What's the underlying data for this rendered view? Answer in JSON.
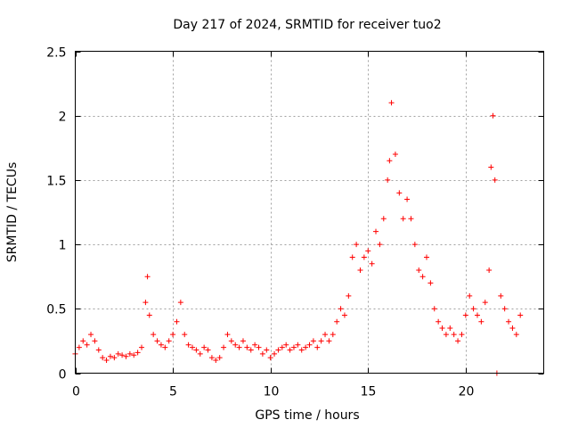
{
  "chart_data": {
    "type": "scatter",
    "title": "Day 217 of 2024, SRMTID for receiver tuo2",
    "xlabel": "GPS time / hours",
    "ylabel": "SRMTID / TECUs",
    "xlim": [
      0,
      24
    ],
    "ylim": [
      0,
      2.5
    ],
    "xticks": [
      0,
      5,
      10,
      15,
      20
    ],
    "xtick_labels": [
      "0",
      "5",
      "10",
      "15",
      "20"
    ],
    "yticks": [
      0,
      0.5,
      1,
      1.5,
      2,
      2.5
    ],
    "ytick_labels": [
      "0",
      "0.5",
      "1",
      "1.5",
      "2",
      "2.5"
    ],
    "grid": true,
    "marker": "+",
    "series": [
      {
        "name": "SRMTID",
        "color": "#ff0000",
        "x": [
          0.0,
          0.2,
          0.4,
          0.6,
          0.8,
          1.0,
          1.2,
          1.4,
          1.6,
          1.8,
          2.0,
          2.2,
          2.4,
          2.6,
          2.8,
          3.0,
          3.2,
          3.4,
          3.6,
          3.7,
          3.8,
          4.0,
          4.2,
          4.4,
          4.6,
          4.8,
          5.0,
          5.2,
          5.4,
          5.6,
          5.8,
          6.0,
          6.2,
          6.4,
          6.6,
          6.8,
          7.0,
          7.2,
          7.4,
          7.6,
          7.8,
          8.0,
          8.2,
          8.4,
          8.6,
          8.8,
          9.0,
          9.2,
          9.4,
          9.6,
          9.8,
          10.0,
          10.2,
          10.4,
          10.6,
          10.8,
          11.0,
          11.2,
          11.4,
          11.6,
          11.8,
          12.0,
          12.2,
          12.4,
          12.6,
          12.8,
          13.0,
          13.2,
          13.4,
          13.6,
          13.8,
          14.0,
          14.2,
          14.4,
          14.6,
          14.8,
          15.0,
          15.2,
          15.4,
          15.6,
          15.8,
          16.0,
          16.1,
          16.2,
          16.4,
          16.6,
          16.8,
          17.0,
          17.2,
          17.4,
          17.6,
          17.8,
          18.0,
          18.2,
          18.4,
          18.6,
          18.8,
          19.0,
          19.2,
          19.4,
          19.6,
          19.8,
          20.0,
          20.2,
          20.4,
          20.6,
          20.8,
          21.0,
          21.2,
          21.3,
          21.4,
          21.5,
          21.6,
          21.8,
          22.0,
          22.2,
          22.4,
          22.6,
          22.8
        ],
        "y": [
          0.15,
          0.2,
          0.25,
          0.22,
          0.3,
          0.25,
          0.18,
          0.12,
          0.1,
          0.13,
          0.12,
          0.15,
          0.14,
          0.13,
          0.15,
          0.14,
          0.16,
          0.2,
          0.55,
          0.75,
          0.45,
          0.3,
          0.25,
          0.22,
          0.2,
          0.25,
          0.3,
          0.4,
          0.55,
          0.3,
          0.22,
          0.2,
          0.18,
          0.15,
          0.2,
          0.18,
          0.12,
          0.1,
          0.12,
          0.2,
          0.3,
          0.25,
          0.22,
          0.2,
          0.25,
          0.2,
          0.18,
          0.22,
          0.2,
          0.15,
          0.18,
          0.12,
          0.15,
          0.18,
          0.2,
          0.22,
          0.18,
          0.2,
          0.22,
          0.18,
          0.2,
          0.22,
          0.25,
          0.2,
          0.25,
          0.3,
          0.25,
          0.3,
          0.4,
          0.5,
          0.45,
          0.6,
          0.9,
          1.0,
          0.8,
          0.9,
          0.95,
          0.85,
          1.1,
          1.0,
          1.2,
          1.5,
          1.65,
          2.1,
          1.7,
          1.4,
          1.2,
          1.35,
          1.2,
          1.0,
          0.8,
          0.75,
          0.9,
          0.7,
          0.5,
          0.4,
          0.35,
          0.3,
          0.35,
          0.3,
          0.25,
          0.3,
          0.45,
          0.6,
          0.5,
          0.45,
          0.4,
          0.55,
          0.8,
          1.6,
          2.0,
          1.5,
          0.0,
          0.6,
          0.5,
          0.4,
          0.35,
          0.3,
          0.45
        ]
      }
    ]
  }
}
